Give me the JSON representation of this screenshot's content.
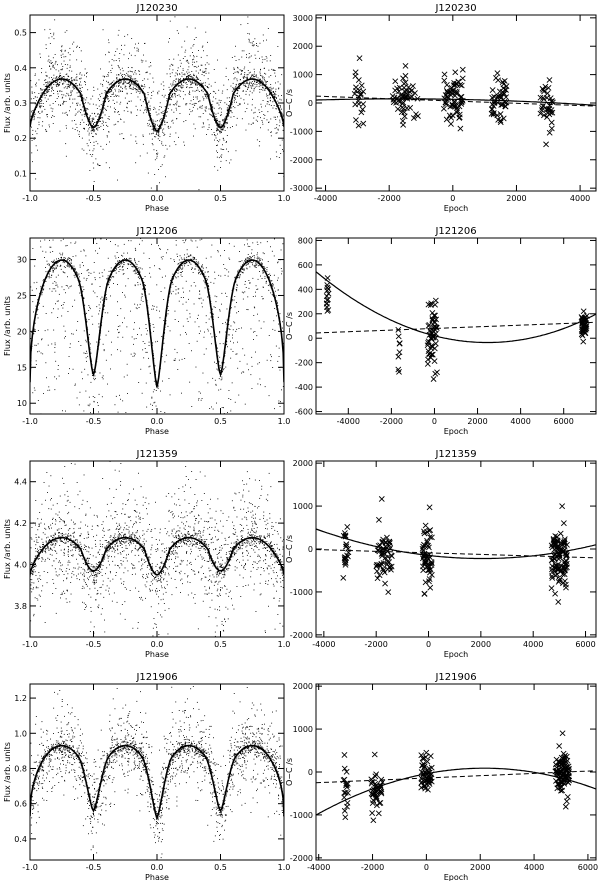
{
  "chart_data": [
    {
      "type": "scatter",
      "title": "J120230",
      "xlabel": "Phase",
      "ylabel": "Flux /arb. units",
      "xlim": [
        -1.0,
        1.0
      ],
      "ylim": [
        0.05,
        0.55
      ],
      "xticks": [
        -1.0,
        -0.5,
        0.0,
        0.5,
        1.0
      ],
      "xtick_labels": [
        "-1.0",
        "-0.5",
        "0.0",
        "0.5",
        "1.0"
      ],
      "yticks": [
        0.1,
        0.2,
        0.3,
        0.4,
        0.5
      ],
      "ytick_labels": [
        "0.1",
        "0.2",
        "0.3",
        "0.4",
        "0.5"
      ],
      "model": {
        "base": 0.3,
        "amp": 0.068,
        "sharp": 3.2,
        "p2": 0.0,
        "noise": 0.16,
        "n": 1500
      },
      "phase_minima": [
        -0.5,
        0.0,
        0.5
      ],
      "min_depth": [
        0.23,
        0.22,
        0.23
      ]
    },
    {
      "type": "scatter",
      "title": "J120230",
      "xlabel": "Epoch",
      "ylabel": "O−C /s",
      "xlim": [
        -4300,
        4500
      ],
      "ylim": [
        -3100,
        3100
      ],
      "xticks": [
        -4000,
        -2000,
        0,
        2000,
        4000
      ],
      "xtick_labels": [
        "-4000",
        "-2000",
        "0",
        "2000",
        "4000"
      ],
      "yticks": [
        -3000,
        -2000,
        -1000,
        0,
        1000,
        2000,
        3000
      ],
      "ytick_labels": [
        "-3000",
        "-2000",
        "-1000",
        "0",
        "1000",
        "2000",
        "3000"
      ],
      "clusters": [
        {
          "center": -2950,
          "spread": 140,
          "mean": 150,
          "sd": 520,
          "count": 22
        },
        {
          "center": -1500,
          "spread": 420,
          "mean": 160,
          "sd": 400,
          "count": 55
        },
        {
          "center": 0,
          "spread": 320,
          "mean": 200,
          "sd": 380,
          "count": 65
        },
        {
          "center": 1450,
          "spread": 240,
          "mean": 30,
          "sd": 420,
          "count": 45
        },
        {
          "center": 2950,
          "spread": 200,
          "mean": -80,
          "sd": 520,
          "count": 35
        }
      ],
      "linear_fit": {
        "intercept": 70,
        "slope": -0.04
      },
      "quadratic_fit": {
        "a": 130,
        "b": -0.02,
        "c": -6e-06
      }
    },
    {
      "type": "scatter",
      "title": "J121206",
      "xlabel": "Phase",
      "ylabel": "Flux /arb. units",
      "xlim": [
        -1.0,
        1.0
      ],
      "ylim": [
        8.5,
        33
      ],
      "xticks": [
        -1.0,
        -0.5,
        0.0,
        0.5,
        1.0
      ],
      "xtick_labels": [
        "-1.0",
        "-0.5",
        "0.0",
        "0.5",
        "1.0"
      ],
      "yticks": [
        10,
        15,
        20,
        25,
        30
      ],
      "ytick_labels": [
        "10",
        "15",
        "20",
        "25",
        "30"
      ],
      "model": {
        "base": 21,
        "amp": 8.5,
        "sharp": 0.0,
        "p2": 1.0,
        "noise": 0.9,
        "n": 1500
      },
      "phase_minima": [
        -0.5,
        0.0,
        0.5
      ],
      "min_depth": [
        14.0,
        12.3,
        14.0
      ]
    },
    {
      "type": "scatter",
      "title": "J121206",
      "xlabel": "Epoch",
      "ylabel": "O−C /s",
      "xlim": [
        -5500,
        7500
      ],
      "ylim": [
        -620,
        820
      ],
      "xticks": [
        -4000,
        -2000,
        0,
        2000,
        4000,
        6000
      ],
      "xtick_labels": [
        "-4000",
        "-2000",
        "0",
        "2000",
        "4000",
        "6000"
      ],
      "yticks": [
        -600,
        -400,
        -200,
        0,
        200,
        400,
        600,
        800
      ],
      "ytick_labels": [
        "-600",
        "-400",
        "-200",
        "0",
        "200",
        "400",
        "600",
        "800"
      ],
      "clusters": [
        {
          "center": -4950,
          "spread": 60,
          "mean": 330,
          "sd": 60,
          "count": 14
        },
        {
          "center": -1650,
          "spread": 40,
          "mean": -100,
          "sd": 110,
          "count": 8
        },
        {
          "center": -100,
          "spread": 220,
          "mean": 30,
          "sd": 140,
          "count": 55
        },
        {
          "center": 6950,
          "spread": 130,
          "mean": 110,
          "sd": 55,
          "count": 45
        }
      ],
      "linear_fit": {
        "intercept": 80,
        "slope": 0.0067
      },
      "quadratic_fit": {
        "a": 20,
        "b": -0.045,
        "c": 9.15e-06
      }
    },
    {
      "type": "scatter",
      "title": "J121359",
      "xlabel": "Phase",
      "ylabel": "Flux /arb. units",
      "xlim": [
        -1.0,
        1.0
      ],
      "ylim": [
        3.65,
        4.5
      ],
      "xticks": [
        -1.0,
        -0.5,
        0.0,
        0.5,
        1.0
      ],
      "xtick_labels": [
        "-1.0",
        "-0.5",
        "0.0",
        "0.5",
        "1.0"
      ],
      "yticks": [
        3.8,
        4.0,
        4.2,
        4.4
      ],
      "ytick_labels": [
        "3.8",
        "4.0",
        "4.2",
        "4.4"
      ],
      "model": {
        "base": 4.04,
        "amp": 0.09,
        "sharp": 3.2,
        "p2": 0.0,
        "noise": 0.19,
        "n": 1500
      },
      "phase_minima": [
        -0.5,
        0.0,
        0.5
      ],
      "min_depth": [
        3.97,
        3.95,
        3.97
      ]
    },
    {
      "type": "scatter",
      "title": "J121359",
      "xlabel": "Epoch",
      "ylabel": "O−C /s",
      "xlim": [
        -4300,
        6400
      ],
      "ylim": [
        -2050,
        2050
      ],
      "xticks": [
        -4000,
        -2000,
        0,
        2000,
        4000,
        6000
      ],
      "xtick_labels": [
        "-4000",
        "-2000",
        "0",
        "2000",
        "4000",
        "6000"
      ],
      "yticks": [
        -2000,
        -1000,
        0,
        1000,
        2000
      ],
      "ytick_labels": [
        "-2000",
        "-1000",
        "0",
        "1000",
        "2000"
      ],
      "clusters": [
        {
          "center": -3150,
          "spread": 110,
          "mean": -60,
          "sd": 360,
          "count": 22
        },
        {
          "center": -1700,
          "spread": 300,
          "mean": -120,
          "sd": 340,
          "count": 55
        },
        {
          "center": -50,
          "spread": 180,
          "mean": -150,
          "sd": 400,
          "count": 55
        },
        {
          "center": 5000,
          "spread": 300,
          "mean": -250,
          "sd": 330,
          "count": 110
        }
      ],
      "linear_fit": {
        "intercept": -90,
        "slope": -0.018
      },
      "quadratic_fit": {
        "a": -150,
        "b": -0.07,
        "c": 1.7e-05
      }
    },
    {
      "type": "scatter",
      "title": "J121906",
      "xlabel": "Phase",
      "ylabel": "Flux /arb. units",
      "xlim": [
        -1.0,
        1.0
      ],
      "ylim": [
        0.28,
        1.28
      ],
      "xticks": [
        -1.0,
        -0.5,
        0.0,
        0.5,
        1.0
      ],
      "xtick_labels": [
        "-1.0",
        "-0.5",
        "0.0",
        "0.5",
        "1.0"
      ],
      "yticks": [
        0.4,
        0.6,
        0.8,
        1.0,
        1.2
      ],
      "ytick_labels": [
        "0.4",
        "0.6",
        "0.8",
        "1.0",
        "1.2"
      ],
      "model": {
        "base": 0.72,
        "amp": 0.2,
        "sharp": 0.0,
        "p2": 1.0,
        "noise": 0.22,
        "n": 1500
      },
      "phase_minima": [
        -0.5,
        0.0,
        0.5
      ],
      "min_depth": [
        0.56,
        0.52,
        0.56
      ]
    },
    {
      "type": "scatter",
      "title": "J121906",
      "xlabel": "Epoch",
      "ylabel": "O−C /s",
      "xlim": [
        -4100,
        6300
      ],
      "ylim": [
        -2050,
        2050
      ],
      "xticks": [
        -4000,
        -2000,
        0,
        2000,
        4000,
        6000
      ],
      "xtick_labels": [
        "-4000",
        "-2000",
        "0",
        "2000",
        "4000",
        "6000"
      ],
      "yticks": [
        -2000,
        -1000,
        0,
        1000,
        2000
      ],
      "ytick_labels": [
        "-2000",
        "-1000",
        "0",
        "1000",
        "2000"
      ],
      "clusters": [
        {
          "center": -3000,
          "spread": 90,
          "mean": -420,
          "sd": 320,
          "count": 18
        },
        {
          "center": -1850,
          "spread": 220,
          "mean": -430,
          "sd": 260,
          "count": 45
        },
        {
          "center": 0,
          "spread": 200,
          "mean": -80,
          "sd": 260,
          "count": 55
        },
        {
          "center": 5050,
          "spread": 260,
          "mean": -60,
          "sd": 250,
          "count": 95
        }
      ],
      "linear_fit": {
        "intercept": -140,
        "slope": 0.027
      },
      "quadratic_fit": {
        "a": -40,
        "b": 0.12,
        "c": -2.8e-05
      }
    }
  ]
}
